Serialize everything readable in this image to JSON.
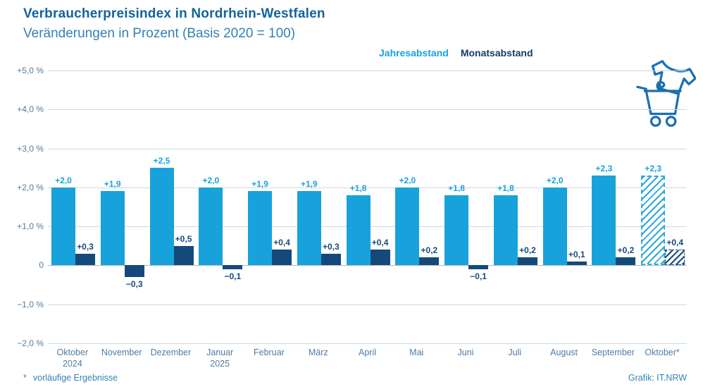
{
  "header": {
    "title": "Verbraucherpreisindex in Nordrhein-Westfalen",
    "subtitle": "Veränderungen in Prozent (Basis 2020 = 100)"
  },
  "legend": {
    "items": [
      {
        "label": "Jahresabstand",
        "color": "#18a2dc"
      },
      {
        "label": "Monatsabstand",
        "color": "#143d62"
      }
    ]
  },
  "icon": {
    "name": "shirt-and-shopping-cart-icon",
    "color": "#1b6faf"
  },
  "footer": {
    "footnote_symbol": "*",
    "footnote_text": "vorläufige Ergebnisse",
    "credit": "Grafik: IT.NRW"
  },
  "colors": {
    "series_year": "#18a2dc",
    "series_month": "#15497b",
    "axis_label": "#4d7ba6",
    "grid": "#cfd7dc",
    "zero_line": "#aeb9c1",
    "title": "#13639c",
    "subtitle": "#3181b5"
  },
  "chart_data": {
    "type": "bar",
    "title": "Verbraucherpreisindex in Nordrhein-Westfalen",
    "subtitle": "Veränderungen in Prozent (Basis 2020 = 100)",
    "categories": [
      [
        "Oktober",
        "2024"
      ],
      [
        "November"
      ],
      [
        "Dezember"
      ],
      [
        "Januar",
        "2025"
      ],
      [
        "Februar"
      ],
      [
        "März"
      ],
      [
        "April"
      ],
      [
        "Mai"
      ],
      [
        "Juni"
      ],
      [
        "Juli"
      ],
      [
        "August"
      ],
      [
        "September"
      ],
      [
        "Oktober*"
      ]
    ],
    "series": [
      {
        "name": "Jahresabstand",
        "color": "#18a2dc",
        "values": [
          2.0,
          1.9,
          2.5,
          2.0,
          1.9,
          1.9,
          1.8,
          2.0,
          1.8,
          1.8,
          2.0,
          2.3,
          2.3
        ],
        "labels": [
          "+2,0",
          "+1,9",
          "+2,5",
          "+2,0",
          "+1,9",
          "+1,9",
          "+1,8",
          "+2,0",
          "+1,8",
          "+1,8",
          "+2,0",
          "+2,3",
          "+2,3"
        ]
      },
      {
        "name": "Monatsabstand",
        "color": "#15497b",
        "values": [
          0.3,
          -0.3,
          0.5,
          -0.1,
          0.4,
          0.3,
          0.4,
          0.2,
          -0.1,
          0.2,
          0.1,
          0.2,
          0.4
        ],
        "labels": [
          "+0,3",
          "−0,3",
          "+0,5",
          "−0,1",
          "+0,4",
          "+0,3",
          "+0,4",
          "+0,2",
          "−0,1",
          "+0,2",
          "+0,1",
          "+0,2",
          "+0,4"
        ]
      }
    ],
    "preliminary_last_group": true,
    "ylim": [
      -2,
      5
    ],
    "grid": true,
    "legend_position": "top-right",
    "yticks": [
      {
        "value": 5,
        "label": "+5,0 %"
      },
      {
        "value": 4,
        "label": "+4,0 %"
      },
      {
        "value": 3,
        "label": "+3,0 %"
      },
      {
        "value": 2,
        "label": "+2,0 %"
      },
      {
        "value": 1,
        "label": "+1,0 %"
      },
      {
        "value": 0,
        "label": "0"
      },
      {
        "value": -1,
        "label": "−1,0 %"
      },
      {
        "value": -2,
        "label": "−2,0 %"
      }
    ]
  }
}
